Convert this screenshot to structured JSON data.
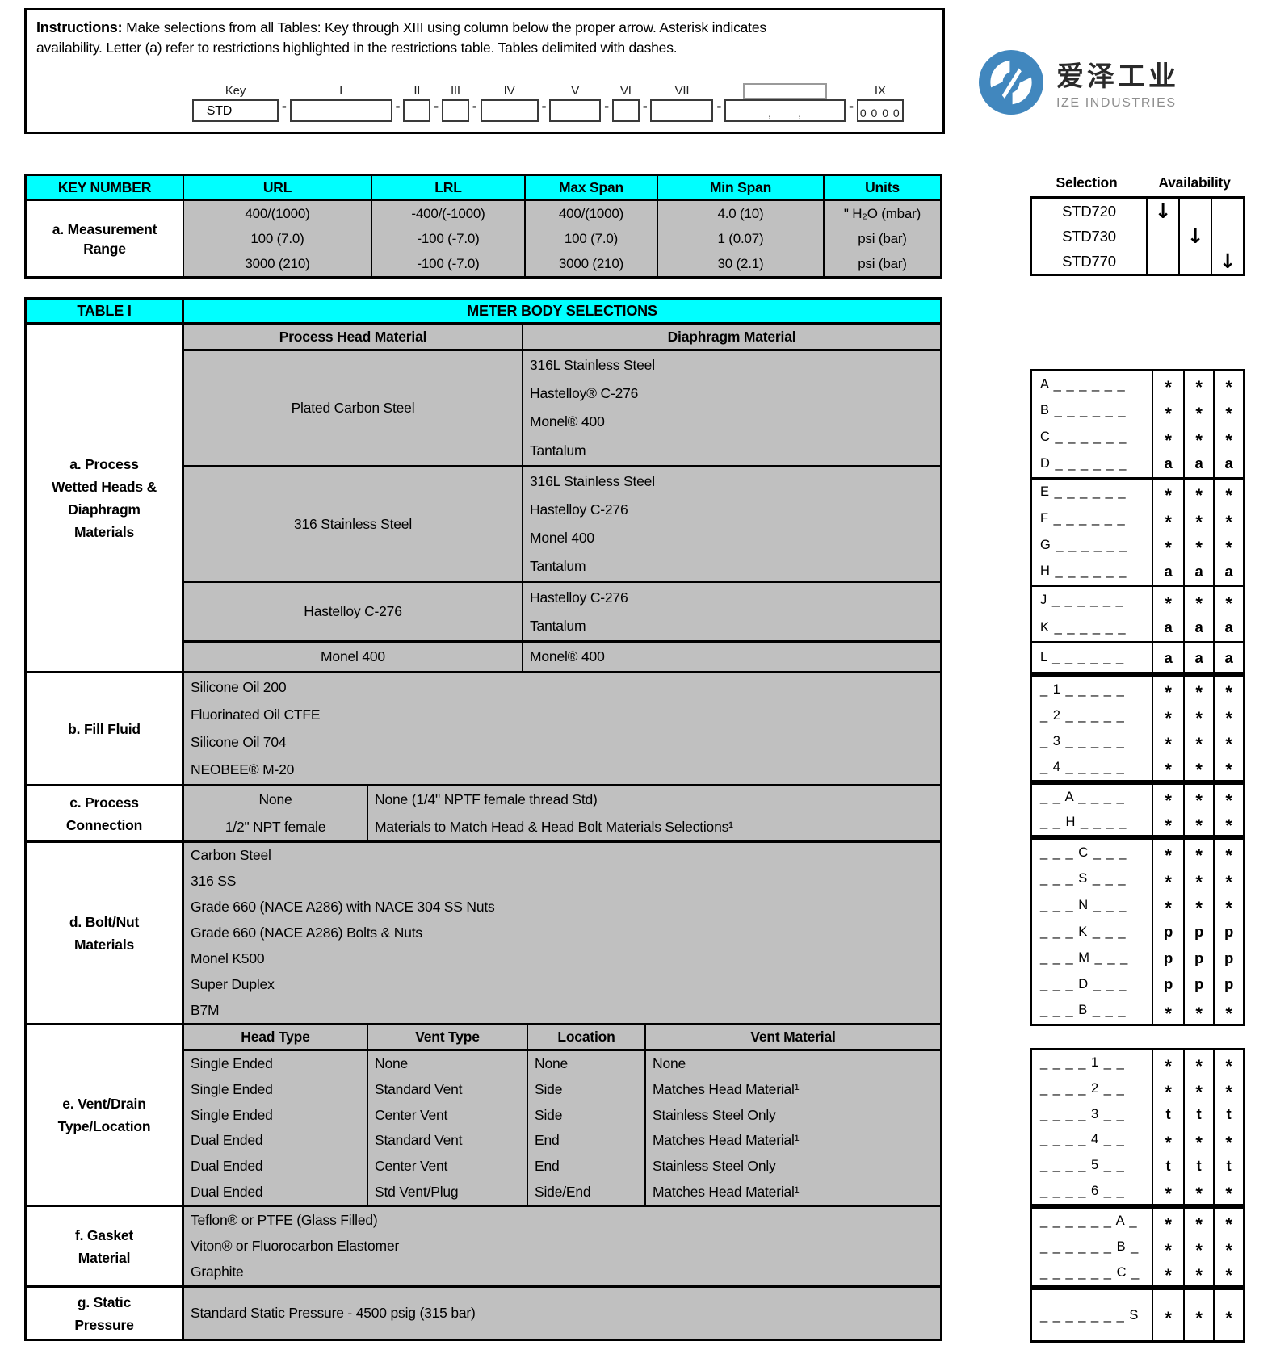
{
  "colors": {
    "header_cyan": "#00ffff",
    "cell_gray": "#c0c0c0",
    "logo_blue": "#4187be"
  },
  "instructions": {
    "label": "Instructions:",
    "line1": "Make selections from all Tables:  Key through XIII  using column below the proper arrow.  Asterisk indicates",
    "line2": "availability. Letter (a) refer to restrictions highlighted in the restrictions table. Tables delimited  with dashes."
  },
  "key_format": {
    "fields": [
      {
        "label": "Key",
        "prefix": "STD",
        "dashes": "_ _ _"
      },
      {
        "label": "I",
        "dashes": "_ _ _ _ _ _ _ _"
      },
      {
        "label": "II",
        "dashes": "_"
      },
      {
        "label": "III",
        "dashes": "_"
      },
      {
        "label": "IV",
        "dashes": "_ _ _"
      },
      {
        "label": "V",
        "dashes": "_ _ _"
      },
      {
        "label": "VI",
        "dashes": "_"
      },
      {
        "label": "VII",
        "dashes": "_ _ _ _"
      },
      {
        "label": "",
        "empty_label": true,
        "dashes": "_ _ , _ _ , _ _"
      },
      {
        "label": "IX",
        "dashes": "0 0 0 0"
      }
    ]
  },
  "logo": {
    "zh": "爱泽工业",
    "en": "IZE INDUSTRIES"
  },
  "measurement_table": {
    "headers": [
      "KEY NUMBER",
      "URL",
      "LRL",
      "Max Span",
      "Min Span",
      "Units"
    ],
    "row_label": "a. Measurement Range",
    "rows": [
      [
        "400/(1000)",
        "-400/(-1000)",
        "400/(1000)",
        "4.0 (10)",
        "\" H₂O (mbar)"
      ],
      [
        "100 (7.0)",
        "-100 (-7.0)",
        "100 (7.0)",
        "1 (0.07)",
        "psi (bar)"
      ],
      [
        "3000 (210)",
        "-100 (-7.0)",
        "3000 (210)",
        "30 (2.1)",
        "psi (bar)"
      ]
    ]
  },
  "selection_table": {
    "selection_header": "Selection",
    "availability_header": "Availability",
    "arrow": "↓",
    "rows": [
      {
        "model": "STD720",
        "arrow_col": 0
      },
      {
        "model": "STD730",
        "arrow_col": 1
      },
      {
        "model": "STD770",
        "arrow_col": 2
      }
    ]
  },
  "table1": {
    "title": "TABLE I",
    "heading": "METER BODY SELECTIONS",
    "sections": {
      "a": {
        "label_lines": [
          "a. Process",
          "Wetted  Heads &",
          "Diaphragm",
          "Materials"
        ],
        "col_headers": [
          "Process Head Material",
          "Diaphragm Material"
        ],
        "groups": [
          {
            "head": "Plated Carbon Steel",
            "diaphragms": [
              "316L Stainless Steel",
              "Hastelloy® C-276",
              "Monel® 400",
              "Tantalum"
            ]
          },
          {
            "head": "316 Stainless Steel",
            "diaphragms": [
              "316L Stainless Steel",
              "Hastelloy C-276",
              "Monel 400",
              "Tantalum"
            ]
          },
          {
            "head": "Hastelloy C-276",
            "diaphragms": [
              "Hastelloy C-276",
              "Tantalum"
            ]
          },
          {
            "head": "Monel 400",
            "diaphragms": [
              "Monel® 400"
            ]
          }
        ]
      },
      "b": {
        "label_lines": [
          "b. Fill Fluid"
        ],
        "items": [
          "Silicone Oil 200",
          "Fluorinated Oil CTFE",
          "Silicone Oil 704",
          "NEOBEE® M-20"
        ]
      },
      "c": {
        "label_lines": [
          "c. Process",
          "Connection"
        ],
        "rows": [
          {
            "left": "None",
            "right": "None (1/4\" NPTF female thread Std)"
          },
          {
            "left": "1/2\" NPT female",
            "right": "Materials to Match Head  &  Head Bolt Materials Selections¹"
          }
        ]
      },
      "d": {
        "label_lines": [
          "d. Bolt/Nut",
          "Materials"
        ],
        "items": [
          "Carbon Steel",
          "316 SS",
          "Grade 660 (NACE A286) with NACE 304 SS Nuts",
          "Grade 660 (NACE A286) Bolts & Nuts",
          "Monel K500",
          "Super Duplex",
          "B7M"
        ]
      },
      "e": {
        "label_lines": [
          "e. Vent/Drain",
          "Type/Location"
        ],
        "col_headers": [
          "Head Type",
          "Vent Type",
          "Location",
          "Vent Material"
        ],
        "rows": [
          [
            "Single Ended",
            "None",
            "None",
            "None"
          ],
          [
            "Single Ended",
            "Standard Vent",
            "Side",
            "Matches Head Material¹"
          ],
          [
            "Single Ended",
            "Center Vent",
            "Side",
            "Stainless Steel Only"
          ],
          [
            "Dual Ended",
            "Standard Vent",
            "End",
            "Matches Head Material¹"
          ],
          [
            "Dual Ended",
            "Center Vent",
            "End",
            "Stainless Steel Only"
          ],
          [
            "Dual Ended",
            "Std Vent/Plug",
            "Side/End",
            "Matches Head Material¹"
          ]
        ]
      },
      "f": {
        "label_lines": [
          "f. Gasket",
          "Material"
        ],
        "items": [
          "Teflon® or PTFE  (Glass Filled)",
          "Viton® or Fluorocarbon Elastomer",
          "Graphite"
        ]
      },
      "g": {
        "label_lines": [
          "g. Static",
          "Pressure"
        ],
        "items": [
          "Standard Static Pressure - 4500 psig (315 bar)"
        ]
      }
    }
  },
  "availability_codes": {
    "a": {
      "groups": [
        [
          {
            "code": "A _ _ _ _ _ _",
            "marks": [
              "*",
              "*",
              "*"
            ]
          },
          {
            "code": "B _ _ _ _ _ _",
            "marks": [
              "*",
              "*",
              "*"
            ]
          },
          {
            "code": "C _ _ _ _ _ _",
            "marks": [
              "*",
              "*",
              "*"
            ]
          },
          {
            "code": "D _ _ _ _ _ _",
            "marks": [
              "a",
              "a",
              "a"
            ]
          }
        ],
        [
          {
            "code": "E _ _ _ _ _ _",
            "marks": [
              "*",
              "*",
              "*"
            ]
          },
          {
            "code": "F _ _ _ _ _ _",
            "marks": [
              "*",
              "*",
              "*"
            ]
          },
          {
            "code": "G _ _ _ _ _ _",
            "marks": [
              "*",
              "*",
              "*"
            ]
          },
          {
            "code": "H _ _ _ _ _ _",
            "marks": [
              "a",
              "a",
              "a"
            ]
          }
        ],
        [
          {
            "code": "J _ _ _ _ _ _",
            "marks": [
              "*",
              "*",
              "*"
            ]
          },
          {
            "code": "K _ _ _ _ _ _",
            "marks": [
              "a",
              "a",
              "a"
            ]
          }
        ],
        [
          {
            "code": "L _ _ _ _ _ _",
            "marks": [
              "a",
              "a",
              "a"
            ]
          }
        ]
      ]
    },
    "b": {
      "groups": [
        [
          {
            "code": "_ 1 _ _ _ _ _",
            "marks": [
              "*",
              "*",
              "*"
            ]
          },
          {
            "code": "_ 2 _ _ _ _ _",
            "marks": [
              "*",
              "*",
              "*"
            ]
          },
          {
            "code": "_ 3 _ _ _ _ _",
            "marks": [
              "*",
              "*",
              "*"
            ]
          },
          {
            "code": "_ 4 _ _ _ _ _",
            "marks": [
              "*",
              "*",
              "*"
            ]
          }
        ]
      ]
    },
    "c": {
      "groups": [
        [
          {
            "code": "_ _ A _ _ _ _",
            "marks": [
              "*",
              "*",
              "*"
            ]
          },
          {
            "code": "_ _ H _ _ _ _",
            "marks": [
              "*",
              "*",
              "*"
            ]
          }
        ]
      ]
    },
    "d": {
      "groups": [
        [
          {
            "code": "_ _ _ C _ _ _",
            "marks": [
              "*",
              "*",
              "*"
            ]
          },
          {
            "code": "_ _ _ S _ _ _",
            "marks": [
              "*",
              "*",
              "*"
            ]
          },
          {
            "code": "_ _ _ N _ _ _",
            "marks": [
              "*",
              "*",
              "*"
            ]
          },
          {
            "code": "_ _ _ K _ _ _",
            "marks": [
              "p",
              "p",
              "p"
            ]
          },
          {
            "code": "_ _ _ M _ _ _",
            "marks": [
              "p",
              "p",
              "p"
            ]
          },
          {
            "code": "_ _ _ D _ _ _",
            "marks": [
              "p",
              "p",
              "p"
            ]
          },
          {
            "code": "_ _ _ B _ _ _",
            "marks": [
              "*",
              "*",
              "*"
            ]
          }
        ]
      ]
    },
    "e": {
      "groups": [
        [
          {
            "code": "_ _ _ _ 1 _ _",
            "marks": [
              "*",
              "*",
              "*"
            ]
          },
          {
            "code": "_ _ _ _ 2 _ _",
            "marks": [
              "*",
              "*",
              "*"
            ]
          },
          {
            "code": "_ _ _ _ 3 _ _",
            "marks": [
              "t",
              "t",
              "t"
            ]
          },
          {
            "code": "_ _ _ _ 4 _ _",
            "marks": [
              "*",
              "*",
              "*"
            ]
          },
          {
            "code": "_ _ _ _ 5 _ _",
            "marks": [
              "t",
              "t",
              "t"
            ]
          },
          {
            "code": "_ _ _ _ 6 _ _",
            "marks": [
              "*",
              "*",
              "*"
            ]
          }
        ]
      ]
    },
    "f": {
      "groups": [
        [
          {
            "code": "_ _ _ _ _ _ A _",
            "marks": [
              "*",
              "*",
              "*"
            ]
          },
          {
            "code": "_ _ _ _ _ _ B _",
            "marks": [
              "*",
              "*",
              "*"
            ]
          },
          {
            "code": "_ _ _ _ _ _ C _",
            "marks": [
              "*",
              "*",
              "*"
            ]
          }
        ]
      ]
    },
    "g": {
      "groups": [
        [
          {
            "code": "_ _ _ _ _ _ _ S",
            "marks": [
              "*",
              "*",
              "*"
            ]
          }
        ]
      ]
    }
  }
}
